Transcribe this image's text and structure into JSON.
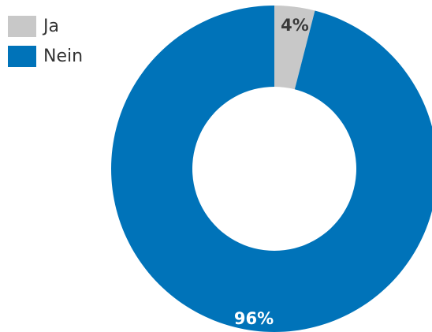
{
  "chart_data": {
    "type": "pie",
    "categories": [
      "Ja",
      "Nein"
    ],
    "values": [
      4,
      96
    ],
    "data_labels": [
      "4%",
      "96%"
    ],
    "colors": [
      "#c8c8c8",
      "#0073b9"
    ],
    "label_colors": [
      "#3a3a3a",
      "#ffffff"
    ],
    "legend": "top-left",
    "donut": true
  }
}
